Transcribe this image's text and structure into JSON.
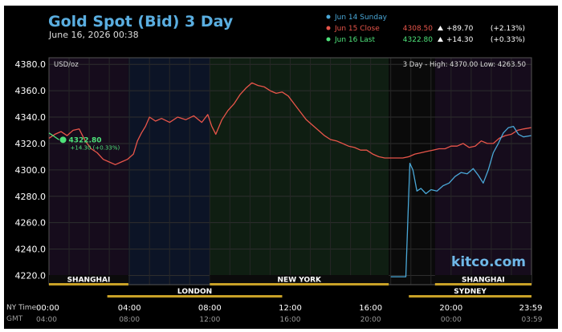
{
  "chart_data": {
    "type": "line",
    "title": "Gold Spot (Bid) 3 Day",
    "subtitle": "June 16, 2026 00:38",
    "unit_label": "USD/oz",
    "range_text": "3 Day - High: 4370.00  Low: 4263.50",
    "brand": "kitco.com",
    "ylim": [
      4213,
      4385
    ],
    "yticks": [
      4220.0,
      4240.0,
      4260.0,
      4280.0,
      4300.0,
      4320.0,
      4340.0,
      4360.0,
      4380.0
    ],
    "xlim": [
      0,
      24
    ],
    "xticks": [
      {
        "h": 0,
        "ny": "00:00",
        "gmt": "04:00"
      },
      {
        "h": 4,
        "ny": "04:00",
        "gmt": "08:00"
      },
      {
        "h": 8,
        "ny": "08:00",
        "gmt": "12:00"
      },
      {
        "h": 12,
        "ny": "12:00",
        "gmt": "16:00"
      },
      {
        "h": 16,
        "ny": "16:00",
        "gmt": "20:00"
      },
      {
        "h": 20,
        "ny": "20:00",
        "gmt": "00:00"
      },
      {
        "h": 23.98,
        "ny": "23:59",
        "gmt": "03:59"
      }
    ],
    "x_row_labels": {
      "ny": "NY Time",
      "gmt": "GMT"
    },
    "legend": [
      {
        "name": "Jun 14 Sunday",
        "value": "",
        "change": "",
        "pct": "",
        "color": "#4aa8d8"
      },
      {
        "name": "Jun 15 Close",
        "value": "4308.50",
        "change": "+89.70",
        "pct": "(+2.13%)",
        "color": "#e8554a"
      },
      {
        "name": "Jun 16 Last",
        "value": "4322.80",
        "change": "+14.30",
        "pct": "(+0.33%)",
        "color": "#4ee27a"
      }
    ],
    "last_marker": {
      "x": 0.5,
      "y": 4322.8,
      "label": "4322.80",
      "change": "+14.30 (+0.33%)"
    },
    "sessions_top": [
      {
        "name": "SHANGHAI",
        "start": 0,
        "end": 3.95
      },
      {
        "name": "NEW YORK",
        "start": 8,
        "end": 16.9
      },
      {
        "name": "SHANGHAI",
        "start": 19.2,
        "end": 24
      }
    ],
    "sessions_bottom": [
      {
        "name": "LONDON",
        "start": 2.9,
        "end": 11.6
      },
      {
        "name": "SYDNEY",
        "start": 17.9,
        "end": 24
      }
    ],
    "series": [
      {
        "name": "Jun 15 Close",
        "color": "#e8554a",
        "x": [
          0,
          0.3,
          0.6,
          0.9,
          1.2,
          1.5,
          1.8,
          2.1,
          2.4,
          2.7,
          3.0,
          3.3,
          3.6,
          3.9,
          4.2,
          4.4,
          4.6,
          4.8,
          5.0,
          5.3,
          5.6,
          6.0,
          6.4,
          6.8,
          7.2,
          7.6,
          7.9,
          8.1,
          8.3,
          8.6,
          8.9,
          9.2,
          9.5,
          9.8,
          10.1,
          10.4,
          10.7,
          11.0,
          11.3,
          11.6,
          11.9,
          12.2,
          12.5,
          12.8,
          13.1,
          13.4,
          13.7,
          14.0,
          14.3,
          14.6,
          14.9,
          15.2,
          15.5,
          15.8,
          16.1,
          16.4,
          16.7,
          17.0,
          17.3,
          17.6,
          17.9,
          18.2,
          18.5,
          18.8,
          19.1,
          19.4,
          19.7,
          20.0,
          20.3,
          20.6,
          20.9,
          21.2,
          21.5,
          21.8,
          22.1,
          22.4,
          22.7,
          23.0,
          23.3,
          23.6,
          23.98
        ],
        "values": [
          4324,
          4327,
          4329,
          4326,
          4330,
          4331,
          4322,
          4316,
          4313,
          4308,
          4306,
          4304,
          4306,
          4308,
          4312,
          4322,
          4328,
          4333,
          4340,
          4337,
          4339,
          4336,
          4340,
          4338,
          4341,
          4336,
          4342,
          4333,
          4327,
          4338,
          4345,
          4350,
          4357,
          4362,
          4366,
          4364,
          4363,
          4360,
          4358,
          4359,
          4356,
          4350,
          4344,
          4338,
          4334,
          4330,
          4326,
          4323,
          4322,
          4320,
          4318,
          4317,
          4315,
          4315,
          4312,
          4310,
          4309,
          4309,
          4309,
          4309,
          4310,
          4312,
          4313,
          4314,
          4315,
          4316,
          4316,
          4318,
          4318,
          4320,
          4317,
          4318,
          4322,
          4320,
          4320,
          4324,
          4326,
          4327,
          4330,
          4331,
          4332
        ]
      },
      {
        "name": "Jun 14 Sunday",
        "color": "#4aa8d8",
        "x": [
          17.0,
          17.4,
          17.75,
          17.8,
          17.95,
          18.1,
          18.3,
          18.5,
          18.75,
          19.0,
          19.3,
          19.6,
          19.9,
          20.2,
          20.5,
          20.8,
          21.1,
          21.35,
          21.6,
          21.85,
          22.1,
          22.35,
          22.6,
          22.85,
          23.1,
          23.35,
          23.6,
          23.98
        ],
        "values": [
          4219,
          4219,
          4219,
          4240,
          4305,
          4300,
          4284,
          4286,
          4282,
          4285,
          4284,
          4288,
          4290,
          4295,
          4298,
          4297,
          4301,
          4296,
          4290,
          4300,
          4313,
          4320,
          4328,
          4332,
          4333,
          4327,
          4325,
          4326
        ]
      },
      {
        "name": "Jun 16 Last",
        "color": "#4ee27a",
        "x": [
          0,
          0.2,
          0.5
        ],
        "values": [
          4328,
          4326,
          4322.8
        ]
      }
    ]
  }
}
